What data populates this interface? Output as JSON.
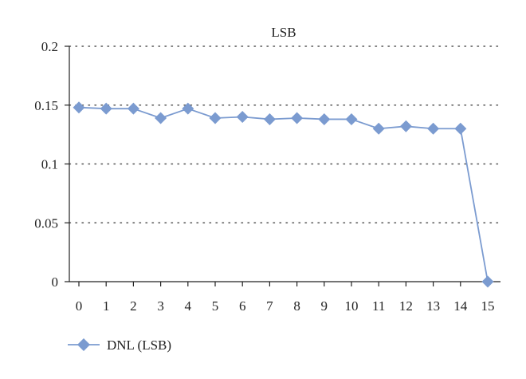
{
  "chart_data": {
    "type": "line",
    "title": "LSB",
    "xlabel": "",
    "ylabel": "",
    "x": [
      0,
      1,
      2,
      3,
      4,
      5,
      6,
      7,
      8,
      9,
      10,
      11,
      12,
      13,
      14,
      15
    ],
    "x_tick_labels": [
      "0",
      "1",
      "2",
      "3",
      "4",
      "5",
      "6",
      "7",
      "8",
      "9",
      "10",
      "11",
      "12",
      "13",
      "14",
      "15"
    ],
    "y_tick_labels": [
      "0.2",
      "0.15",
      "0.1",
      "0.05",
      "0"
    ],
    "y_ticks": [
      0.2,
      0.15,
      0.1,
      0.05,
      0
    ],
    "ylim": [
      0,
      0.2
    ],
    "grid": true,
    "legend_position": "bottom-left",
    "series": [
      {
        "name": "DNL (LSB)",
        "color": "#7b9bd0",
        "marker": "diamond",
        "values": [
          0.148,
          0.147,
          0.147,
          0.139,
          0.147,
          0.139,
          0.14,
          0.138,
          0.139,
          0.138,
          0.138,
          0.13,
          0.132,
          0.13,
          0.13,
          0.0
        ]
      }
    ]
  }
}
